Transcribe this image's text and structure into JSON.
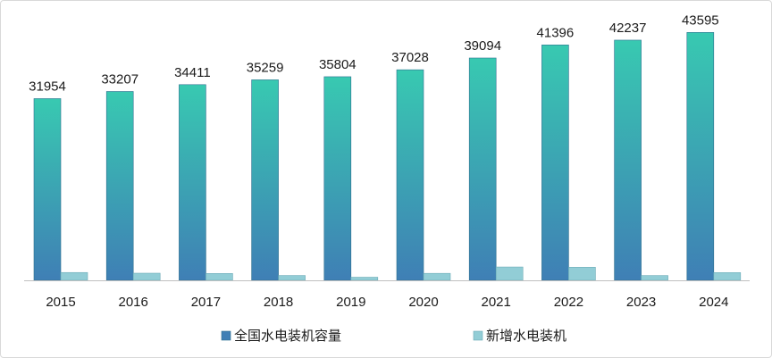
{
  "chart_data": {
    "type": "bar",
    "categories": [
      "2015",
      "2016",
      "2017",
      "2018",
      "2019",
      "2020",
      "2021",
      "2022",
      "2023",
      "2024"
    ],
    "series": [
      {
        "name": "全国水电装机容量",
        "values": [
          31954,
          33207,
          34411,
          35259,
          35804,
          37028,
          39094,
          41396,
          42237,
          43595
        ]
      },
      {
        "name": "新增水电装机",
        "values": [
          1375,
          1253,
          1204,
          848,
          545,
          1224,
          2345,
          2302,
          841,
          1358
        ]
      }
    ],
    "ylim": [
      0,
      46000
    ],
    "grid": false,
    "legend_position": "bottom",
    "data_labels": "series-1",
    "colors": {
      "series1_top": "#38c9b1",
      "series1_bottom": "#3f7fb5",
      "series2": "#92cdd6",
      "axis": "#bfbfbf"
    }
  }
}
